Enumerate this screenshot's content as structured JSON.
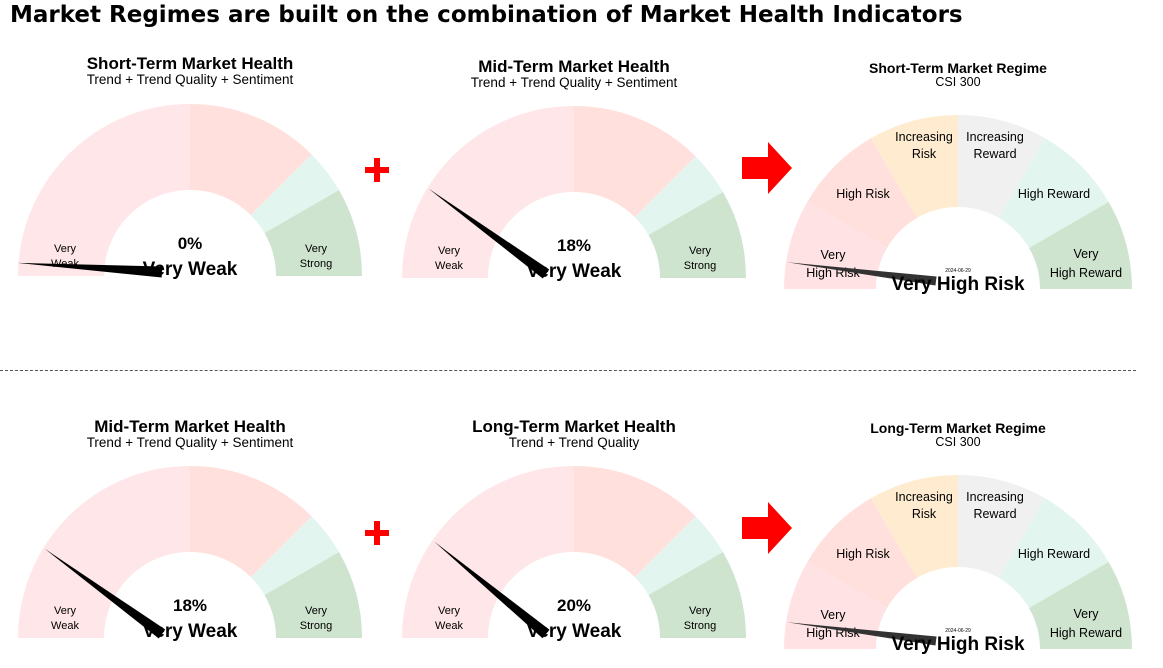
{
  "title": "Market Regimes are built on the combination of Market Health Indicators",
  "colors": {
    "health_segments": [
      "#ffe6e8",
      "#ffe6e8",
      "#ffe0dc",
      "#ffe0dc",
      "#e2f5ee",
      "#cfe4cf"
    ],
    "regime_segments": [
      "#ffe3e4",
      "#ffe0dc",
      "#ffecd0",
      "#f0f0f0",
      "#e2f5ee",
      "#cfe4cf"
    ],
    "plus": "#ff0000",
    "arrow": "#ff0000",
    "needle": "#000000",
    "regime_needle": "#333333"
  },
  "operators": {
    "plus": "+"
  },
  "chart_data": [
    {
      "type": "gauge",
      "kind": "health",
      "title": "Short-Term Market Health",
      "subtitle": "Trend + Trend Quality + Sentiment",
      "value": 0,
      "value_label": "0%",
      "status": "Very Weak",
      "left_label": [
        "Very",
        "Weak"
      ],
      "right_label": [
        "Very",
        "Strong"
      ]
    },
    {
      "type": "gauge",
      "kind": "health",
      "title": "Mid-Term Market Health",
      "subtitle": "Trend + Trend Quality + Sentiment",
      "value": 18,
      "value_label": "18%",
      "status": "Very Weak",
      "left_label": [
        "Very",
        "Weak"
      ],
      "right_label": [
        "Very",
        "Strong"
      ]
    },
    {
      "type": "gauge",
      "kind": "regime",
      "title": "Short-Term Market Regime",
      "subtitle": "CSI 300",
      "value": 4,
      "status": "Very High Risk",
      "date": "2024-06-29",
      "segments": [
        [
          "Very",
          "High Risk"
        ],
        [
          "High Risk"
        ],
        [
          "Increasing",
          "Risk"
        ],
        [
          "Increasing",
          "Reward"
        ],
        [
          "High Reward"
        ],
        [
          "Very",
          "High Reward"
        ]
      ]
    },
    {
      "type": "gauge",
      "kind": "health",
      "title": "Mid-Term Market Health",
      "subtitle": "Trend + Trend Quality + Sentiment",
      "value": 18,
      "value_label": "18%",
      "status": "Very Weak",
      "left_label": [
        "Very",
        "Weak"
      ],
      "right_label": [
        "Very",
        "Strong"
      ]
    },
    {
      "type": "gauge",
      "kind": "health",
      "title": "Long-Term Market Health",
      "subtitle": "Trend + Trend Quality",
      "value": 20,
      "value_label": "20%",
      "status": "Very Weak",
      "left_label": [
        "Very",
        "Weak"
      ],
      "right_label": [
        "Very",
        "Strong"
      ]
    },
    {
      "type": "gauge",
      "kind": "regime",
      "title": "Long-Term Market Regime",
      "subtitle": "CSI 300",
      "value": 4,
      "status": "Very High Risk",
      "date": "2024-06-29",
      "segments": [
        [
          "Very",
          "High Risk"
        ],
        [
          "High Risk"
        ],
        [
          "Increasing",
          "Risk"
        ],
        [
          "Increasing",
          "Reward"
        ],
        [
          "High Reward"
        ],
        [
          "Very",
          "High Reward"
        ]
      ]
    }
  ]
}
